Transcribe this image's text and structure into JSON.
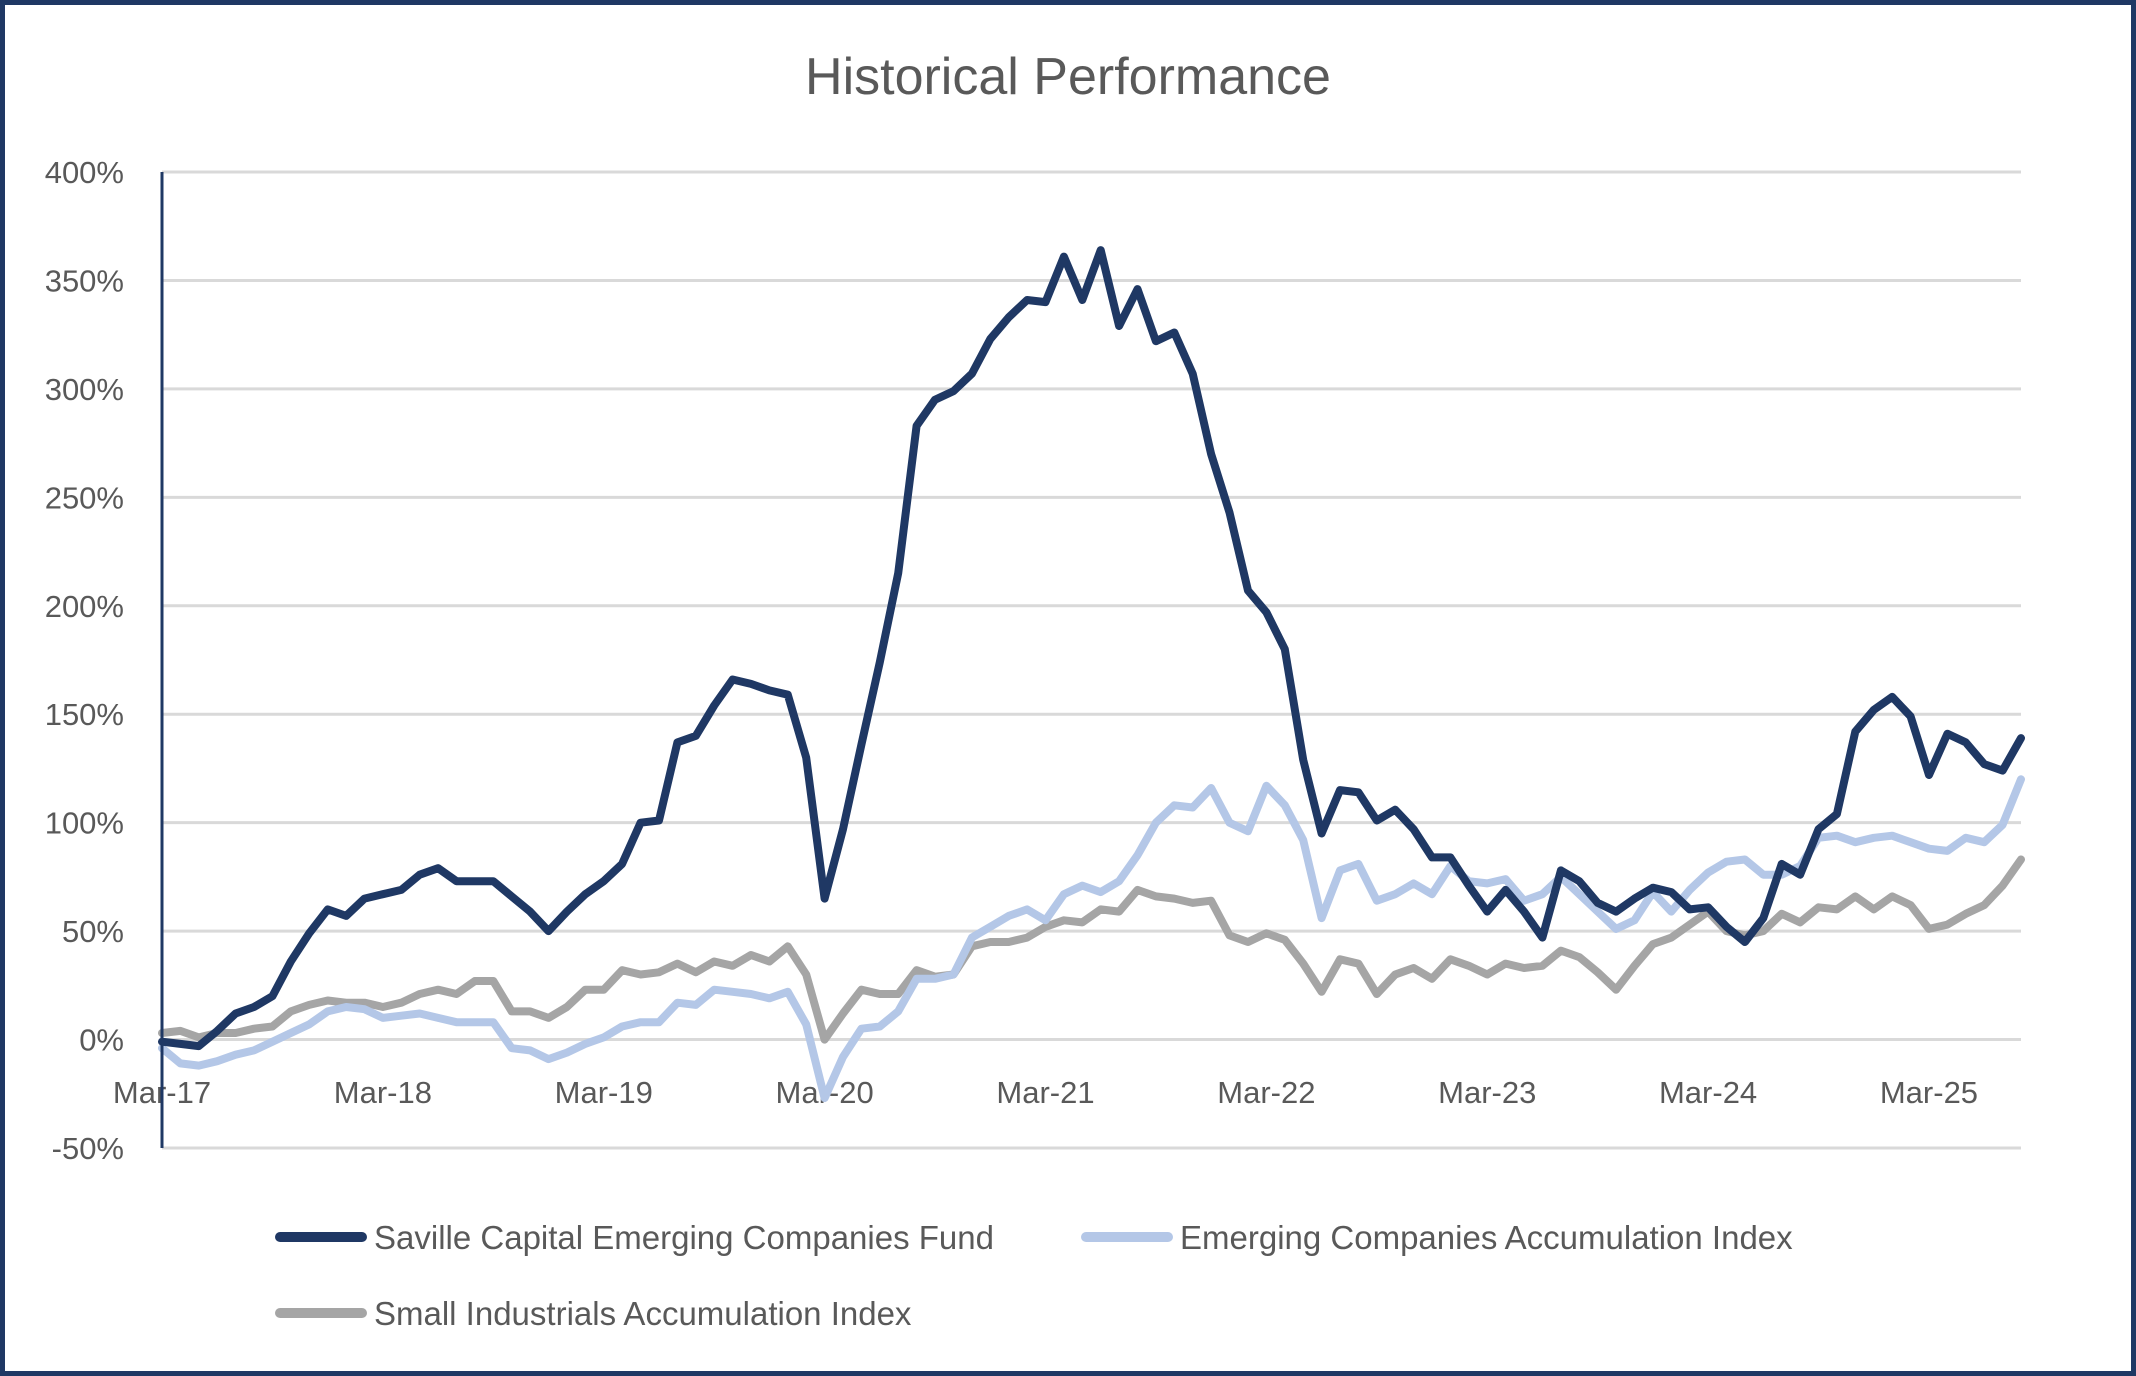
{
  "chart_data": {
    "type": "line",
    "title": "Historical Performance",
    "xlabel": "",
    "ylabel": "",
    "ylim": [
      -50,
      400
    ],
    "y_ticks": [
      -50,
      0,
      50,
      100,
      150,
      200,
      250,
      300,
      350,
      400
    ],
    "y_tick_labels": [
      "-50%",
      "0%",
      "50%",
      "100%",
      "150%",
      "200%",
      "250%",
      "300%",
      "350%",
      "400%"
    ],
    "y_unit": "%",
    "grid": true,
    "legend_position": "bottom",
    "x_start": "Mar-17",
    "x_end": "Aug-25",
    "x_frequency": "monthly",
    "x_tick_labels": [
      "Mar-17",
      "Mar-18",
      "Mar-19",
      "Mar-20",
      "Mar-21",
      "Mar-22",
      "Mar-23",
      "Mar-24",
      "Mar-25"
    ],
    "x": [
      "Mar-17",
      "Apr-17",
      "May-17",
      "Jun-17",
      "Jul-17",
      "Aug-17",
      "Sep-17",
      "Oct-17",
      "Nov-17",
      "Dec-17",
      "Jan-18",
      "Feb-18",
      "Mar-18",
      "Apr-18",
      "May-18",
      "Jun-18",
      "Jul-18",
      "Aug-18",
      "Sep-18",
      "Oct-18",
      "Nov-18",
      "Dec-18",
      "Jan-19",
      "Feb-19",
      "Mar-19",
      "Apr-19",
      "May-19",
      "Jun-19",
      "Jul-19",
      "Aug-19",
      "Sep-19",
      "Oct-19",
      "Nov-19",
      "Dec-19",
      "Jan-20",
      "Feb-20",
      "Mar-20",
      "Apr-20",
      "May-20",
      "Jun-20",
      "Jul-20",
      "Aug-20",
      "Sep-20",
      "Oct-20",
      "Nov-20",
      "Dec-20",
      "Jan-21",
      "Feb-21",
      "Mar-21",
      "Apr-21",
      "May-21",
      "Jun-21",
      "Jul-21",
      "Aug-21",
      "Sep-21",
      "Oct-21",
      "Nov-21",
      "Dec-21",
      "Jan-22",
      "Feb-22",
      "Mar-22",
      "Apr-22",
      "May-22",
      "Jun-22",
      "Jul-22",
      "Aug-22",
      "Sep-22",
      "Oct-22",
      "Nov-22",
      "Dec-22",
      "Jan-23",
      "Feb-23",
      "Mar-23",
      "Apr-23",
      "May-23",
      "Jun-23",
      "Jul-23",
      "Aug-23",
      "Sep-23",
      "Oct-23",
      "Nov-23",
      "Dec-23",
      "Jan-24",
      "Feb-24",
      "Mar-24",
      "Apr-24",
      "May-24",
      "Jun-24",
      "Jul-24",
      "Aug-24",
      "Sep-24",
      "Oct-24",
      "Nov-24",
      "Dec-24",
      "Jan-25",
      "Feb-25",
      "Mar-25",
      "Apr-25",
      "May-25",
      "Jun-25",
      "Jul-25",
      "Aug-25"
    ],
    "series": [
      {
        "name": "Saville Capital Emerging Companies Fund",
        "color": "#1f3864",
        "values": [
          -1,
          -2,
          -3,
          4,
          12,
          15,
          20,
          36,
          49,
          60,
          57,
          65,
          67,
          69,
          76,
          79,
          73,
          73,
          73,
          66,
          59,
          50,
          59,
          67,
          73,
          81,
          100,
          101,
          137,
          140,
          154,
          166,
          164,
          161,
          159,
          130,
          65,
          97,
          136,
          174,
          215,
          283,
          295,
          299,
          307,
          323,
          333,
          341,
          340,
          361,
          341,
          364,
          329,
          346,
          322,
          326,
          307,
          270,
          243,
          207,
          197,
          180,
          129,
          95,
          115,
          114,
          101,
          106,
          97,
          84,
          84,
          71,
          59,
          69,
          59,
          47,
          78,
          73,
          63,
          59,
          65,
          70,
          68,
          60,
          61,
          52,
          45,
          56,
          81,
          76,
          97,
          104,
          142,
          152,
          158,
          149,
          122,
          141,
          137,
          127,
          124,
          139
        ]
      },
      {
        "name": "Emerging Companies Accumulation Index",
        "color": "#b4c7e7",
        "values": [
          -4,
          -11,
          -12,
          -10,
          -7,
          -5,
          -1,
          3,
          7,
          13,
          15,
          14,
          10,
          11,
          12,
          10,
          8,
          8,
          8,
          -4,
          -5,
          -9,
          -6,
          -2,
          1,
          6,
          8,
          8,
          17,
          16,
          23,
          22,
          21,
          19,
          22,
          7,
          -27,
          -8,
          5,
          6,
          13,
          28,
          28,
          30,
          47,
          52,
          57,
          60,
          55,
          67,
          71,
          68,
          73,
          85,
          100,
          108,
          107,
          116,
          100,
          96,
          117,
          108,
          92,
          56,
          78,
          81,
          64,
          67,
          72,
          67,
          80,
          73,
          72,
          74,
          64,
          67,
          75,
          67,
          59,
          51,
          55,
          68,
          59,
          69,
          77,
          82,
          83,
          76,
          76,
          80,
          93,
          94,
          91,
          93,
          94,
          91,
          88,
          87,
          93,
          91,
          99,
          120
        ]
      },
      {
        "name": "Small Industrials Accumulation Index",
        "color": "#a5a5a5",
        "values": [
          3,
          4,
          1,
          3,
          3,
          5,
          6,
          13,
          16,
          18,
          17,
          17,
          15,
          17,
          21,
          23,
          21,
          27,
          27,
          13,
          13,
          10,
          15,
          23,
          23,
          32,
          30,
          31,
          35,
          31,
          36,
          34,
          39,
          36,
          43,
          30,
          0,
          12,
          23,
          21,
          21,
          32,
          29,
          30,
          43,
          45,
          45,
          47,
          52,
          55,
          54,
          60,
          59,
          69,
          66,
          65,
          63,
          64,
          48,
          45,
          49,
          46,
          35,
          22,
          37,
          35,
          21,
          30,
          33,
          28,
          37,
          34,
          30,
          35,
          33,
          34,
          41,
          38,
          31,
          23,
          34,
          44,
          47,
          53,
          59,
          50,
          48,
          50,
          58,
          54,
          61,
          60,
          66,
          60,
          66,
          62,
          51,
          53,
          58,
          62,
          71,
          83
        ]
      }
    ]
  },
  "colors": {
    "frame_border": "#1f3864",
    "axis_line": "#1f3864",
    "gridline": "#d9d9d9",
    "text": "#595959"
  }
}
